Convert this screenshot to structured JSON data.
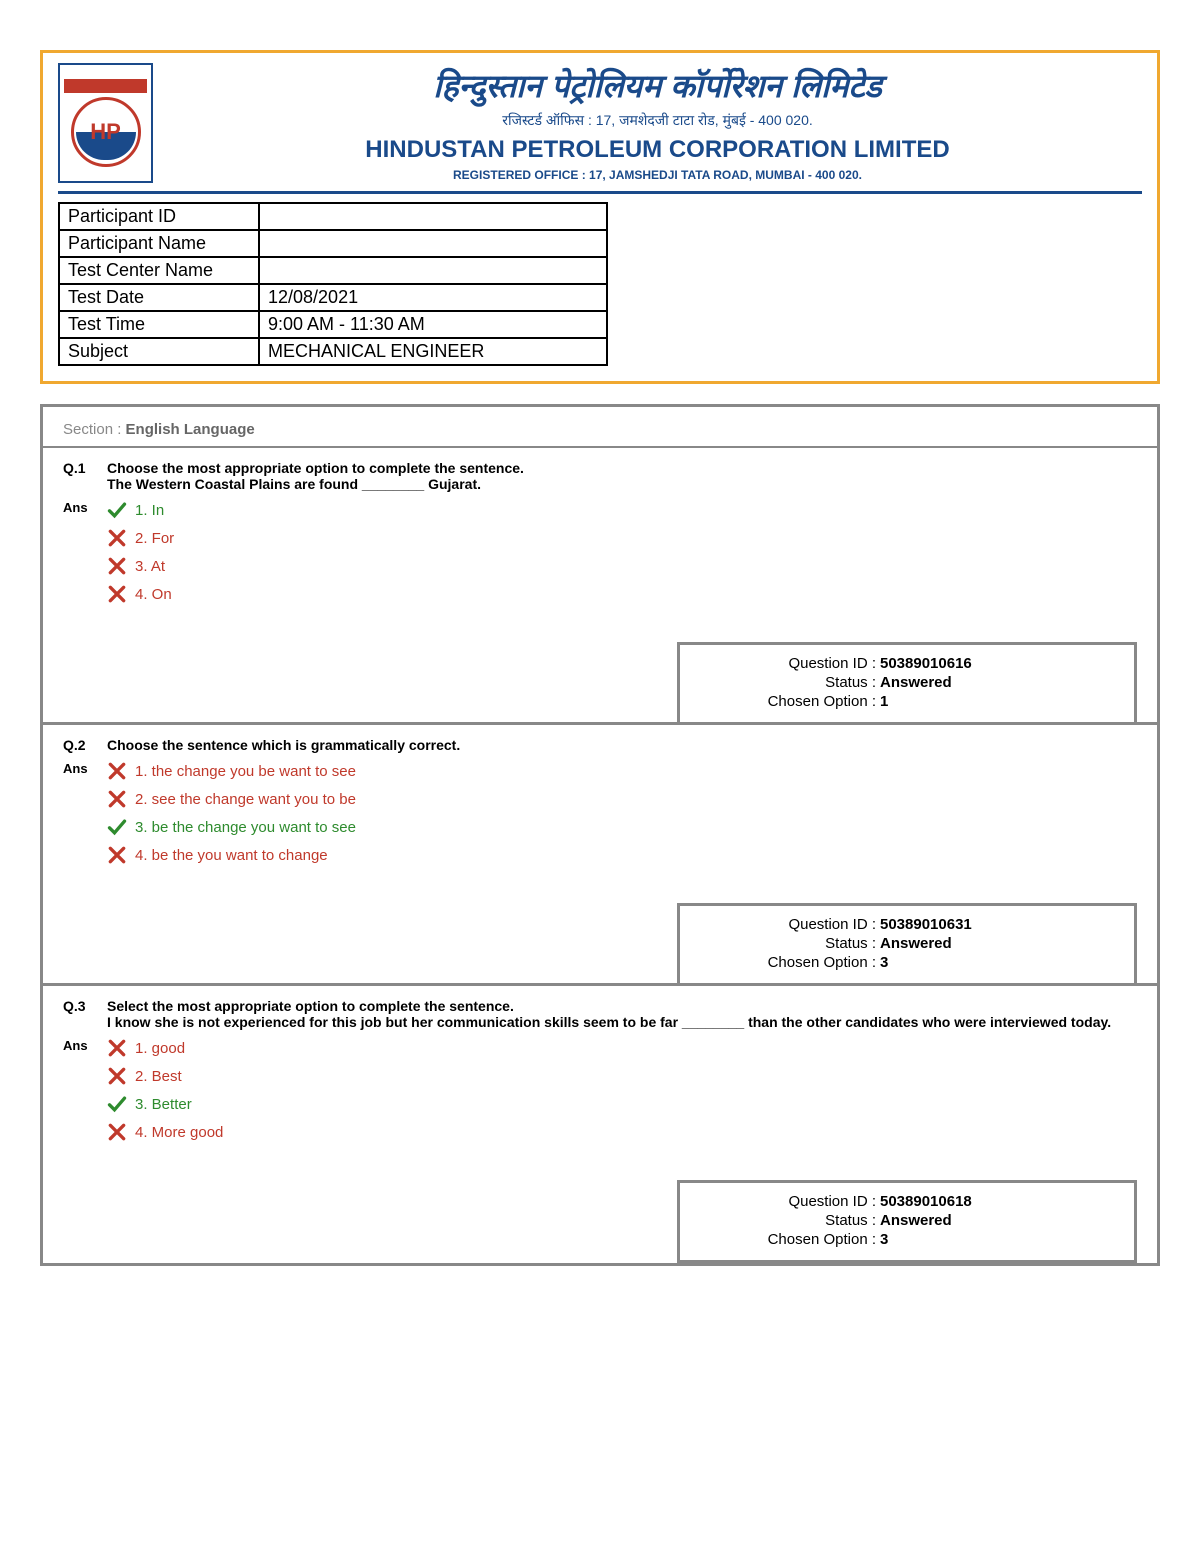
{
  "header": {
    "hindi_title": "हिन्दुस्तान पेट्रोलियम कॉर्पोरेशन लिमिटेड",
    "hindi_sub": "रजिस्टर्ड ऑफिस : 17, जमशेदजी टाटा रोड, मुंबई - 400 020.",
    "eng_title": "HINDUSTAN PETROLEUM CORPORATION LIMITED",
    "eng_sub": "REGISTERED OFFICE : 17, JAMSHEDJI TATA ROAD, MUMBAI - 400 020.",
    "logo_text": "HP"
  },
  "info": {
    "rows": [
      {
        "label": "Participant ID",
        "value": ""
      },
      {
        "label": "Participant Name",
        "value": ""
      },
      {
        "label": "Test Center Name",
        "value": ""
      },
      {
        "label": "Test Date",
        "value": "12/08/2021"
      },
      {
        "label": "Test Time",
        "value": "9:00 AM - 11:30 AM"
      },
      {
        "label": "Subject",
        "value": "MECHANICAL ENGINEER"
      }
    ]
  },
  "section": {
    "prefix": "Section : ",
    "name": "English Language"
  },
  "questions": [
    {
      "num": "Q.1",
      "text": "Choose the most appropriate option to complete the sentence.\nThe Western Coastal Plains are found ________ Gujarat.",
      "ans_label": "Ans",
      "options": [
        {
          "text": "1. In",
          "correct": true
        },
        {
          "text": "2. For",
          "correct": false
        },
        {
          "text": "3. At",
          "correct": false
        },
        {
          "text": "4. On",
          "correct": false
        }
      ],
      "meta": {
        "qid_label": "Question ID : ",
        "qid": "50389010616",
        "status_label": "Status : ",
        "status": "Answered",
        "chosen_label": "Chosen Option : ",
        "chosen": "1"
      }
    },
    {
      "num": "Q.2",
      "text": "Choose the sentence which is grammatically correct.",
      "ans_label": "Ans",
      "options": [
        {
          "text": "1. the change you be want to see",
          "correct": false
        },
        {
          "text": "2. see the change want you to be",
          "correct": false
        },
        {
          "text": "3. be the change you want to see",
          "correct": true
        },
        {
          "text": "4. be the you want to change",
          "correct": false
        }
      ],
      "meta": {
        "qid_label": "Question ID : ",
        "qid": "50389010631",
        "status_label": "Status : ",
        "status": "Answered",
        "chosen_label": "Chosen Option : ",
        "chosen": "3"
      }
    },
    {
      "num": "Q.3",
      "text": "Select the most appropriate option to complete the sentence.\nI know she is not experienced for this job but her communication skills seem to be far ________ than the other candidates who were interviewed today.",
      "ans_label": "Ans",
      "options": [
        {
          "text": "1. good",
          "correct": false
        },
        {
          "text": "2. Best",
          "correct": false
        },
        {
          "text": "3. Better",
          "correct": true
        },
        {
          "text": "4. More good",
          "correct": false
        }
      ],
      "meta": {
        "qid_label": "Question ID : ",
        "qid": "50389010618",
        "status_label": "Status : ",
        "status": "Answered",
        "chosen_label": "Chosen Option : ",
        "chosen": "3"
      }
    }
  ],
  "colors": {
    "correct": "#2e8b2e",
    "wrong": "#c0392b",
    "brand_blue": "#1a4a8a",
    "border_orange": "#f0a830",
    "border_gray": "#888888"
  }
}
